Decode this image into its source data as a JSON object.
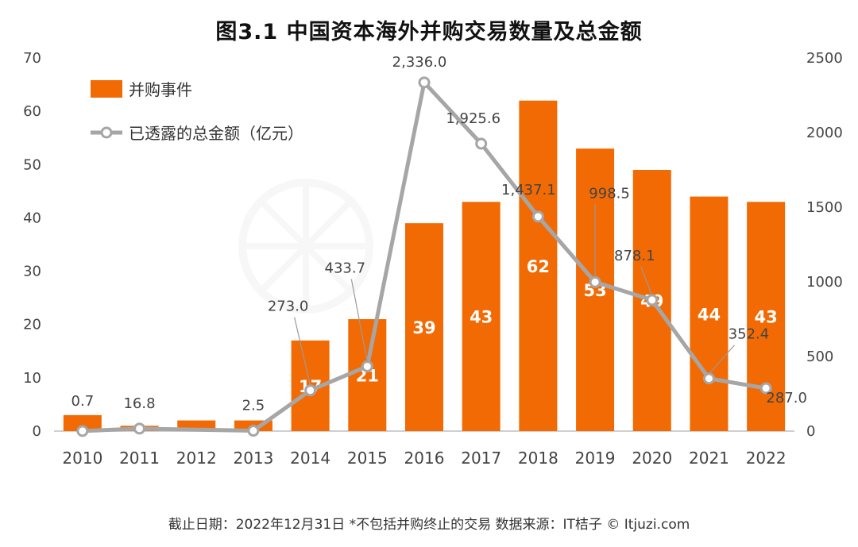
{
  "title": "图3.1  中国资本海外并购交易数量及总金额",
  "footer": "截止日期：2022年12月31日    *不包括并购终止的交易    数据来源：IT桔子 © Itjuzi.com",
  "colors": {
    "bar": "#f26a04",
    "line": "#a6a6a6",
    "axis": "#bfbfbf"
  },
  "chart_data": {
    "type": "bar",
    "categories": [
      "2010",
      "2011",
      "2012",
      "2013",
      "2014",
      "2015",
      "2016",
      "2017",
      "2018",
      "2019",
      "2020",
      "2021",
      "2022"
    ],
    "series": [
      {
        "name": "并购事件",
        "type": "bar",
        "axis": "left",
        "values": [
          3,
          1,
          2,
          2,
          17,
          21,
          39,
          43,
          62,
          53,
          49,
          44,
          43
        ],
        "labels": [
          "",
          "",
          "",
          "",
          "17",
          "21",
          "39",
          "43",
          "62",
          "53",
          "49",
          "44",
          "43"
        ]
      },
      {
        "name": "已透露的总金额（亿元）",
        "type": "line",
        "axis": "right",
        "values": [
          0.7,
          16.8,
          null,
          2.5,
          273.0,
          433.7,
          2336.0,
          1925.6,
          1437.1,
          998.5,
          878.1,
          352.4,
          287.0
        ],
        "labels": [
          "0.7",
          "16.8",
          "",
          "2.5",
          "273.0",
          "433.7",
          "2,336.0",
          "1,925.6",
          "1,437.1",
          "998.5",
          "878.1",
          "352.4",
          "287.0"
        ]
      }
    ],
    "y_left": {
      "ylim": [
        0,
        70
      ],
      "ticks": [
        "0",
        "10",
        "20",
        "30",
        "40",
        "50",
        "60",
        "70"
      ]
    },
    "y_right": {
      "ylim": [
        0,
        2500
      ],
      "ticks": [
        "0",
        "500",
        "1000",
        "1500",
        "2000",
        "2500"
      ]
    },
    "legend_position": "top-left",
    "grid": false
  }
}
